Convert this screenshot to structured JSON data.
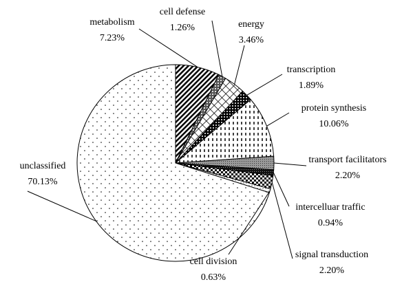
{
  "chart_data": {
    "type": "pie",
    "categories": [
      "metabolism",
      "cell defense",
      "energy",
      "transcription",
      "protein synthesis",
      "transport facilitators",
      "intercelluar traffic",
      "signal transduction",
      "cell division",
      "unclassified"
    ],
    "values": [
      7.23,
      1.26,
      3.46,
      1.89,
      10.06,
      2.2,
      0.94,
      2.2,
      0.63,
      70.13
    ],
    "value_labels": [
      "7.23%",
      "1.26%",
      "3.46%",
      "1.89%",
      "10.06%",
      "2.20%",
      "0.94%",
      "2.20%",
      "0.63%",
      "70.13%"
    ]
  }
}
